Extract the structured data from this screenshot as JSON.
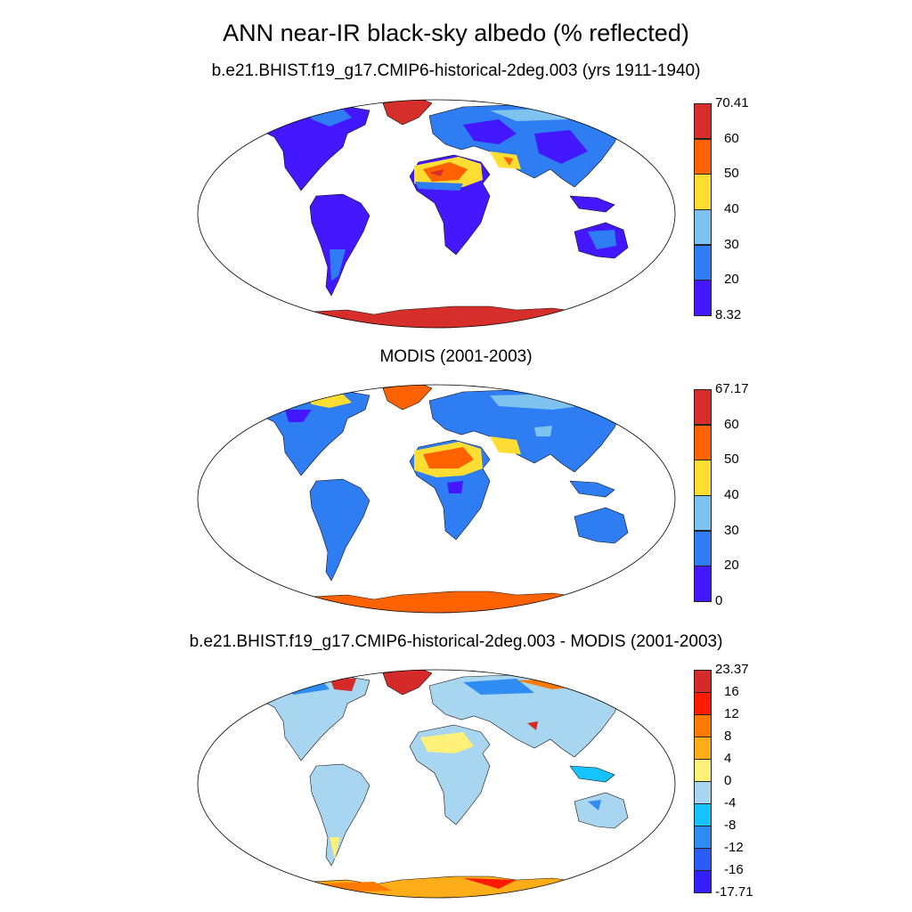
{
  "title": "ANN near-IR black-sky albedo (% reflected)",
  "panels": [
    {
      "subtitle": "b.e21.BHIST.f19_g17.CMIP6-historical-2deg.003 (yrs 1911-1940)",
      "colorbar": {
        "labels": [
          "70.41",
          "60",
          "50",
          "40",
          "30",
          "20",
          "8.32"
        ],
        "colors": [
          "#d62e2a",
          "#ff6200",
          "#ffdd33",
          "#7ec3f0",
          "#2f7df2",
          "#4418ff"
        ]
      }
    },
    {
      "subtitle": "MODIS (2001-2003)",
      "colorbar": {
        "labels": [
          "67.17",
          "60",
          "50",
          "40",
          "30",
          "20",
          "0"
        ],
        "colors": [
          "#d62e2a",
          "#ff6200",
          "#ffdd33",
          "#7ec3f0",
          "#2f7df2",
          "#4418ff"
        ]
      }
    },
    {
      "subtitle": "b.e21.BHIST.f19_g17.CMIP6-historical-2deg.003 - MODIS (2001-2003)",
      "colorbar": {
        "labels": [
          "23.37",
          "16",
          "12",
          "8",
          "4",
          "0",
          "-4",
          "-8",
          "-12",
          "-16",
          "-17.71"
        ],
        "colors": [
          "#d42a2a",
          "#ff1a00",
          "#ff7a00",
          "#ffae1a",
          "#fff07a",
          "#a8d6f0",
          "#17c3ff",
          "#2e8cf2",
          "#2b5cf5",
          "#3420ff"
        ]
      }
    }
  ]
}
